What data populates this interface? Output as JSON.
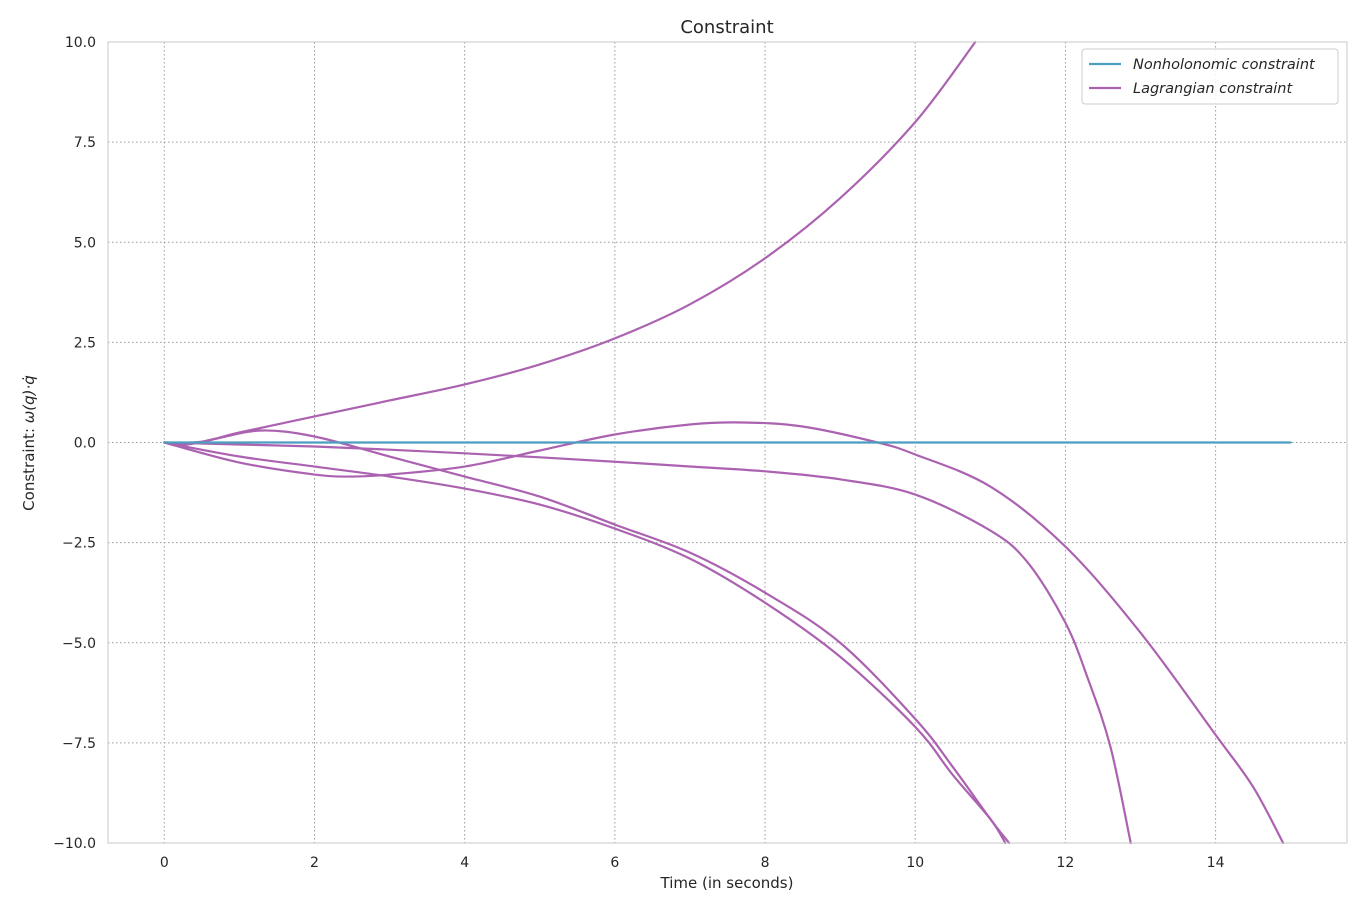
{
  "chart_data": {
    "type": "line",
    "title": "Constraint",
    "xlabel": "Time (in seconds)",
    "ylabel_prefix": "Constraint: ",
    "ylabel_math": "ω(q)·q̇",
    "xlim": [
      -0.75,
      15.75
    ],
    "ylim": [
      -10,
      10
    ],
    "x_ticks": [
      0,
      2,
      4,
      6,
      8,
      10,
      12,
      14
    ],
    "x_tick_labels": [
      "0",
      "2",
      "4",
      "6",
      "8",
      "10",
      "12",
      "14"
    ],
    "y_ticks": [
      -10,
      -7.5,
      -5,
      -2.5,
      0,
      2.5,
      5,
      7.5,
      10
    ],
    "y_tick_labels": [
      "−10.0",
      "−7.5",
      "−5.0",
      "−2.5",
      "0.0",
      "2.5",
      "5.0",
      "7.5",
      "10.0"
    ],
    "grid": true,
    "legend_position": "top-right",
    "legend": [
      {
        "label": "Nonholonomic constraint",
        "color": "#4c9ec0"
      },
      {
        "label": "Lagrangian constraint",
        "color": "#ab62b0"
      }
    ],
    "series": [
      {
        "legend_index": 0,
        "color": "#4c9ec0",
        "points": [
          [
            0,
            0
          ],
          [
            15,
            0
          ]
        ]
      },
      {
        "legend_index": 1,
        "color": "#ab62b0",
        "points": [
          [
            0,
            0
          ],
          [
            0.5,
            0.02
          ],
          [
            1,
            0.25
          ],
          [
            2,
            0.65
          ],
          [
            3,
            1.05
          ],
          [
            4,
            1.45
          ],
          [
            5,
            1.95
          ],
          [
            6,
            2.6
          ],
          [
            7,
            3.45
          ],
          [
            8,
            4.6
          ],
          [
            9,
            6.1
          ],
          [
            10,
            8.0
          ],
          [
            10.8,
            10.0
          ]
        ]
      },
      {
        "legend_index": 1,
        "color": "#ab62b0",
        "points": [
          [
            0,
            0
          ],
          [
            0.3,
            -0.05
          ],
          [
            0.7,
            0.1
          ],
          [
            1.3,
            0.3
          ],
          [
            2,
            0.15
          ],
          [
            3,
            -0.35
          ],
          [
            4,
            -0.85
          ],
          [
            5,
            -1.35
          ],
          [
            6,
            -2.05
          ],
          [
            7,
            -2.75
          ],
          [
            8,
            -3.75
          ],
          [
            9,
            -5.0
          ],
          [
            10,
            -6.9
          ],
          [
            10.5,
            -8.1
          ],
          [
            11,
            -9.4
          ],
          [
            11.25,
            -10.0
          ]
        ]
      },
      {
        "legend_index": 1,
        "color": "#ab62b0",
        "points": [
          [
            0,
            0
          ],
          [
            1,
            -0.5
          ],
          [
            2,
            -0.8
          ],
          [
            2.5,
            -0.85
          ],
          [
            3,
            -0.8
          ],
          [
            4,
            -0.6
          ],
          [
            5,
            -0.2
          ],
          [
            6,
            0.2
          ],
          [
            7,
            0.45
          ],
          [
            7.7,
            0.5
          ],
          [
            8.5,
            0.4
          ],
          [
            9.5,
            0.0
          ],
          [
            10,
            -0.3
          ],
          [
            11,
            -1.1
          ],
          [
            12,
            -2.6
          ],
          [
            13,
            -4.75
          ],
          [
            14,
            -7.3
          ],
          [
            14.5,
            -8.6
          ],
          [
            14.9,
            -10.0
          ]
        ]
      },
      {
        "legend_index": 1,
        "color": "#ab62b0",
        "points": [
          [
            0,
            0
          ],
          [
            1,
            -0.35
          ],
          [
            2,
            -0.6
          ],
          [
            3,
            -0.85
          ],
          [
            4,
            -1.15
          ],
          [
            5,
            -1.55
          ],
          [
            6,
            -2.15
          ],
          [
            7,
            -2.9
          ],
          [
            8,
            -4.0
          ],
          [
            9,
            -5.35
          ],
          [
            10,
            -7.1
          ],
          [
            10.5,
            -8.3
          ],
          [
            11,
            -9.4
          ],
          [
            11.2,
            -10.0
          ]
        ]
      },
      {
        "legend_index": 1,
        "color": "#ab62b0",
        "points": [
          [
            0,
            0
          ],
          [
            1,
            -0.05
          ],
          [
            2,
            -0.1
          ],
          [
            3,
            -0.18
          ],
          [
            4,
            -0.27
          ],
          [
            5,
            -0.37
          ],
          [
            6,
            -0.48
          ],
          [
            7,
            -0.6
          ],
          [
            8,
            -0.72
          ],
          [
            9,
            -0.92
          ],
          [
            10,
            -1.3
          ],
          [
            11,
            -2.2
          ],
          [
            11.5,
            -3.0
          ],
          [
            12,
            -4.5
          ],
          [
            12.3,
            -5.9
          ],
          [
            12.6,
            -7.6
          ],
          [
            12.87,
            -10.0
          ]
        ]
      }
    ]
  }
}
